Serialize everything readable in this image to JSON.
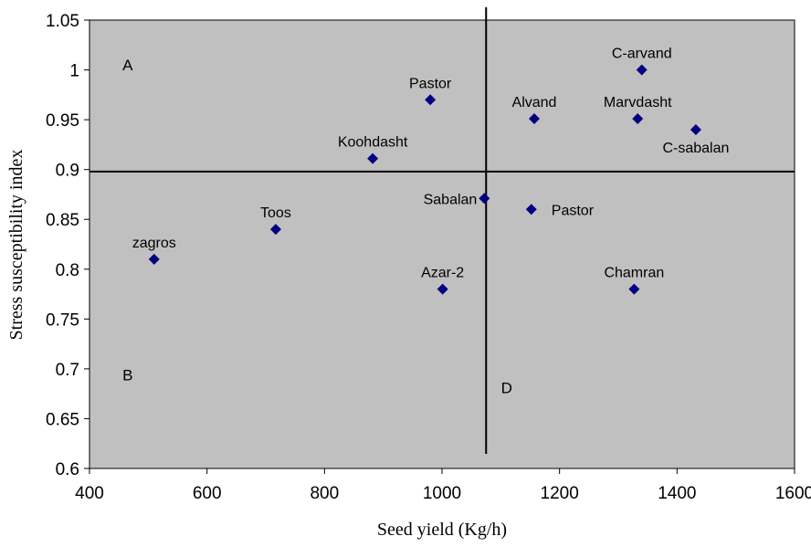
{
  "chart_data": {
    "type": "scatter",
    "xlabel": "Seed yield (Kg/h)",
    "ylabel": "Stress susceptibility index",
    "xlim": [
      400,
      1600
    ],
    "ylim": [
      0.6,
      1.05
    ],
    "xticks": [
      400,
      600,
      800,
      1000,
      1200,
      1400,
      1600
    ],
    "yticks": [
      0.6,
      0.65,
      0.7,
      0.75,
      0.8,
      0.85,
      0.9,
      0.95,
      1,
      1.05
    ],
    "xtick_labels": [
      "400",
      "600",
      "800",
      "1000",
      "1200",
      "1400",
      "1600"
    ],
    "ytick_labels": [
      "0.6",
      "0.65",
      "0.7",
      "0.75",
      "0.8",
      "0.85",
      "0.9",
      "0.95",
      "1",
      "1.05"
    ],
    "plot_background": "#c0c0c0",
    "marker_color": "#000080",
    "reference_lines": {
      "x": 1075,
      "y": 0.898
    },
    "points": [
      {
        "label": "zagros",
        "x": 510,
        "y": 0.81,
        "label_pos": "above"
      },
      {
        "label": "Toos",
        "x": 717,
        "y": 0.84,
        "label_pos": "above"
      },
      {
        "label": "Koohdasht",
        "x": 882,
        "y": 0.911,
        "label_pos": "above"
      },
      {
        "label": "Pastor",
        "x": 980,
        "y": 0.97,
        "label_pos": "above"
      },
      {
        "label": "Azar-2",
        "x": 1001,
        "y": 0.78,
        "label_pos": "above"
      },
      {
        "label": "Sabalan",
        "x": 1072,
        "y": 0.871,
        "label_pos": "left"
      },
      {
        "label": "Pastor",
        "x": 1152,
        "y": 0.86,
        "label_pos": "right"
      },
      {
        "label": "Alvand",
        "x": 1157,
        "y": 0.951,
        "label_pos": "above"
      },
      {
        "label": "Chamran",
        "x": 1327,
        "y": 0.78,
        "label_pos": "above"
      },
      {
        "label": "Marvdasht",
        "x": 1333,
        "y": 0.951,
        "label_pos": "above"
      },
      {
        "label": "C-arvand",
        "x": 1340,
        "y": 1.0,
        "label_pos": "above"
      },
      {
        "label": "C-sabalan",
        "x": 1432,
        "y": 0.94,
        "label_pos": "below"
      }
    ],
    "quadrant_labels": [
      {
        "text": "A",
        "x": 465,
        "y": 1.005
      },
      {
        "text": "B",
        "x": 465,
        "y": 0.694
      },
      {
        "text": "D",
        "x": 1110,
        "y": 0.681
      }
    ]
  }
}
